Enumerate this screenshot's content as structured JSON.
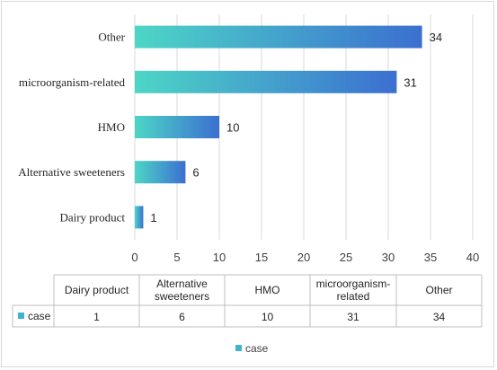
{
  "chart_data": {
    "type": "bar",
    "orientation": "horizontal",
    "categories": [
      "Dairy product",
      "Alternative sweeteners",
      "HMO",
      "microorganism-related",
      "Other"
    ],
    "series": [
      {
        "name": "case",
        "values": [
          1,
          6,
          10,
          31,
          34
        ]
      }
    ],
    "xlim": [
      0,
      40
    ],
    "xticks": [
      0,
      5,
      10,
      15,
      20,
      25,
      30,
      35,
      40
    ],
    "grid": true,
    "data_table": {
      "headers": [
        "Dairy product",
        "Alternative\nsweeteners",
        "HMO",
        "microorganism-\nrelated",
        "Other"
      ],
      "row_label": "case",
      "values": [
        "1",
        "6",
        "10",
        "31",
        "34"
      ]
    },
    "legend": {
      "position": "bottom",
      "entries": [
        "case"
      ]
    },
    "colors": {
      "bar_start": "#4dd6c6",
      "bar_end": "#3b6fd1",
      "legend_key": "#40b2d0",
      "grid": "#d9d9d9"
    }
  }
}
